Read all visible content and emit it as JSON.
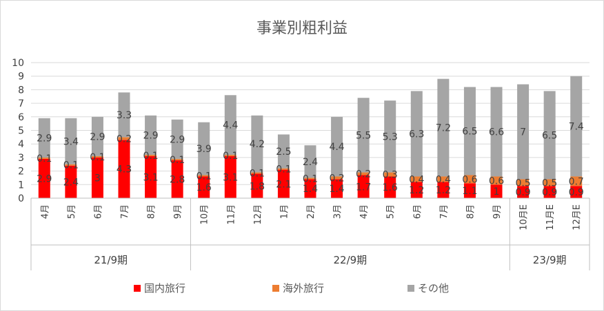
{
  "chart_data": {
    "type": "bar",
    "stacked": true,
    "title": "事業別粗利益",
    "ylim": [
      0,
      10
    ],
    "yticks": [
      0,
      1,
      2,
      3,
      4,
      5,
      6,
      7,
      8,
      9,
      10
    ],
    "grid": true,
    "legend_position": "bottom",
    "categories": [
      "4月",
      "5月",
      "6月",
      "7月",
      "8月",
      "9月",
      "10月",
      "11月",
      "12月",
      "1月",
      "2月",
      "3月",
      "4月",
      "5月",
      "6月",
      "7月",
      "8月",
      "9月",
      "10月E",
      "11月E",
      "12月E"
    ],
    "groups": [
      {
        "label": "21/9期",
        "count": 6
      },
      {
        "label": "22/9期",
        "count": 12
      },
      {
        "label": "23/9期",
        "count": 3
      }
    ],
    "series": [
      {
        "name": "国内旅行",
        "color": "#ff0000",
        "values": [
          2.9,
          2.4,
          3,
          4.3,
          3.1,
          2.8,
          1.6,
          3.1,
          1.8,
          2.1,
          1.4,
          1.4,
          1.7,
          1.6,
          1.2,
          1.2,
          1.1,
          1,
          0.9,
          0.9,
          0.9
        ]
      },
      {
        "name": "海外旅行",
        "color": "#ed7d31",
        "values": [
          0.1,
          0.1,
          0.1,
          0.2,
          0.1,
          0.1,
          0.1,
          0.1,
          0.1,
          0.1,
          0.1,
          0.2,
          0.2,
          0.3,
          0.4,
          0.4,
          0.6,
          0.6,
          0.5,
          0.5,
          0.7
        ]
      },
      {
        "name": "その他",
        "color": "#a5a5a5",
        "values": [
          2.9,
          3.4,
          2.9,
          3.3,
          2.9,
          2.9,
          3.9,
          4.4,
          4.2,
          2.5,
          2.4,
          4.4,
          5.5,
          5.3,
          6.3,
          7.2,
          6.5,
          6.6,
          7,
          6.5,
          7.4
        ]
      }
    ]
  }
}
